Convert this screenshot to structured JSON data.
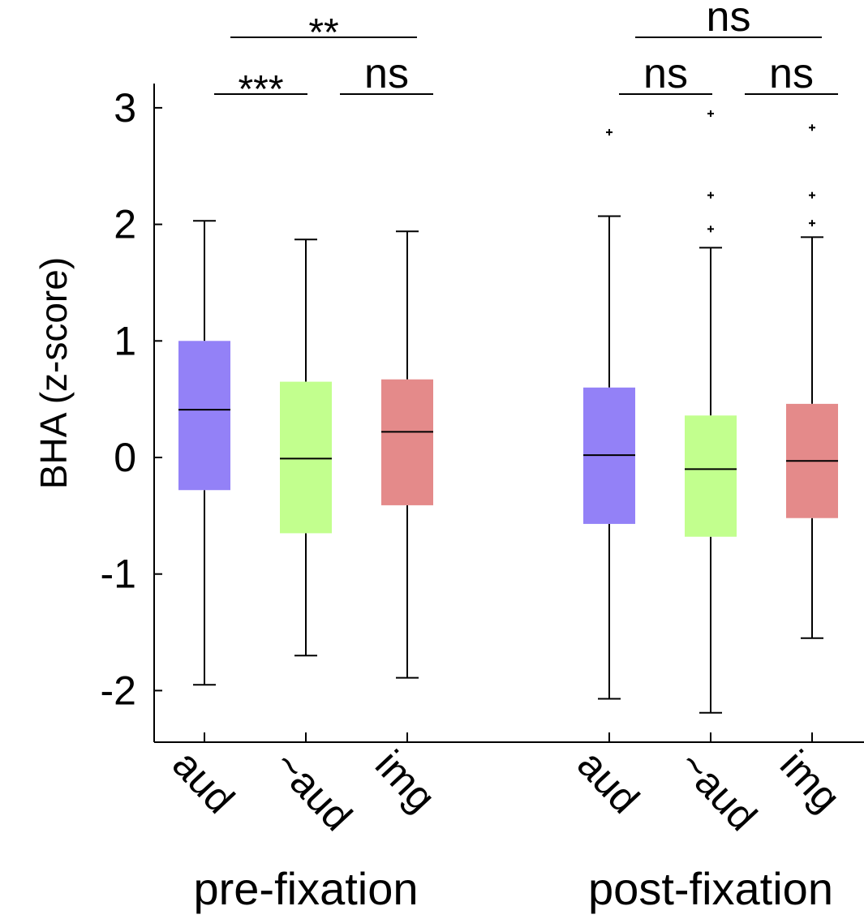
{
  "chart_data": {
    "type": "box",
    "ylabel": "BHA (z-score)",
    "ylim": [
      -2.45,
      3.2
    ],
    "yticks": [
      3,
      2,
      1,
      0,
      -1,
      -2
    ],
    "grid": false,
    "groups": [
      {
        "label": "pre-fixation",
        "boxes": [
          {
            "name": "aud",
            "color": "#9381f7",
            "whisker_low": -1.95,
            "q1": -0.28,
            "median": 0.41,
            "q3": 1.0,
            "whisker_high": 2.03,
            "outliers": []
          },
          {
            "name": "~aud",
            "color": "#c2ff8e",
            "whisker_low": -1.7,
            "q1": -0.65,
            "median": -0.01,
            "q3": 0.65,
            "whisker_high": 1.87,
            "outliers": []
          },
          {
            "name": "img",
            "color": "#e48a8a",
            "whisker_low": -1.89,
            "q1": -0.41,
            "median": 0.22,
            "q3": 0.67,
            "whisker_high": 1.94,
            "outliers": []
          }
        ],
        "significance": [
          {
            "label": "***",
            "from": 0,
            "to": 1,
            "level": 1
          },
          {
            "label": "ns",
            "from": 1,
            "to": 2,
            "level": 1
          },
          {
            "label": "**",
            "from": 0,
            "to": 2,
            "level": 2
          }
        ]
      },
      {
        "label": "post-fixation",
        "boxes": [
          {
            "name": "aud",
            "color": "#9381f7",
            "whisker_low": -2.07,
            "q1": -0.57,
            "median": 0.02,
            "q3": 0.6,
            "whisker_high": 2.07,
            "outliers": [
              2.79
            ]
          },
          {
            "name": "~aud",
            "color": "#c2ff8e",
            "whisker_low": -2.19,
            "q1": -0.68,
            "median": -0.1,
            "q3": 0.36,
            "whisker_high": 1.8,
            "outliers": [
              1.96,
              2.25,
              2.95
            ]
          },
          {
            "name": "img",
            "color": "#e48a8a",
            "whisker_low": -1.55,
            "q1": -0.52,
            "median": -0.03,
            "q3": 0.46,
            "whisker_high": 1.89,
            "outliers": [
              2.01,
              2.25,
              2.83
            ]
          }
        ],
        "significance": [
          {
            "label": "ns",
            "from": 0,
            "to": 1,
            "level": 1
          },
          {
            "label": "ns",
            "from": 1,
            "to": 2,
            "level": 1
          },
          {
            "label": "ns",
            "from": 0,
            "to": 2,
            "level": 2
          }
        ]
      }
    ]
  }
}
